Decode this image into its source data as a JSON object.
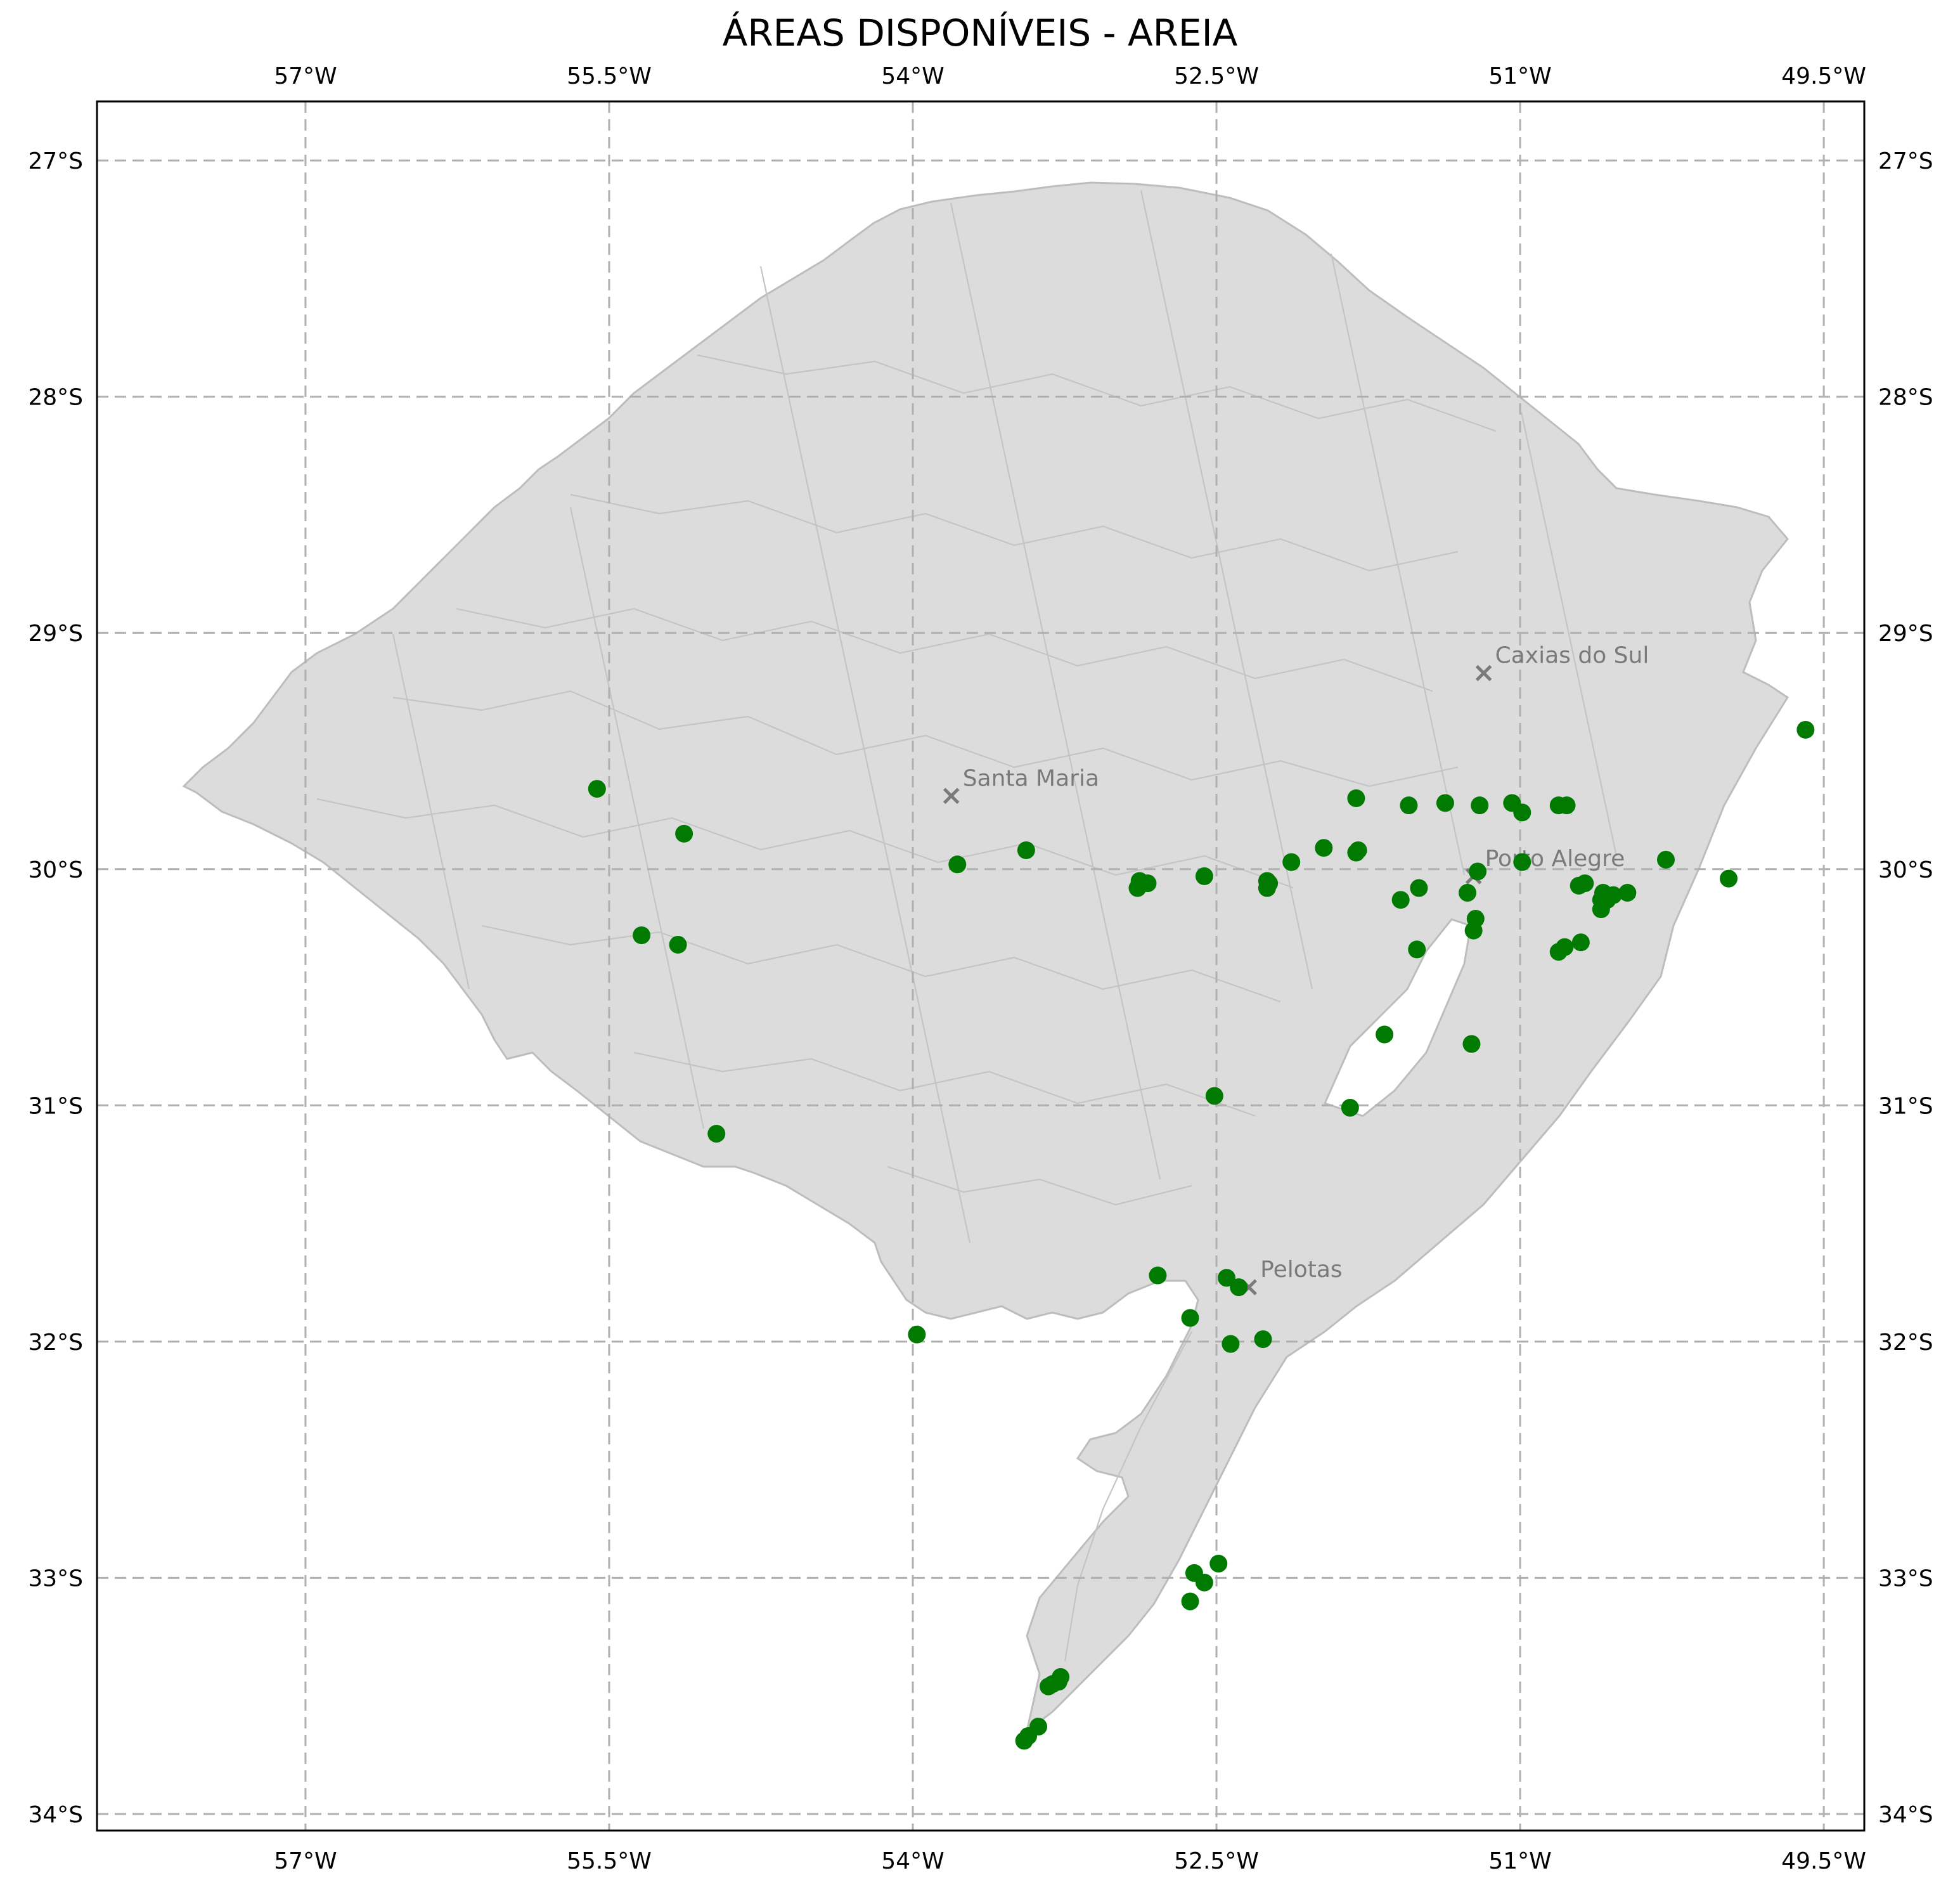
{
  "title": "ÁREAS DISPONÍVEIS - AREIA",
  "colors": {
    "land": "#dcdcdc",
    "border": "#bdbdbd",
    "point": "#007a00",
    "city_marker": "#7a7a7a"
  },
  "x_ticks": [
    {
      "lon": -57.0,
      "label": "57°W"
    },
    {
      "lon": -55.5,
      "label": "55.5°W"
    },
    {
      "lon": -54.0,
      "label": "54°W"
    },
    {
      "lon": -52.5,
      "label": "52.5°W"
    },
    {
      "lon": -51.0,
      "label": "51°W"
    },
    {
      "lon": -49.5,
      "label": "49.5°W"
    }
  ],
  "y_ticks": [
    {
      "lat": -27,
      "label": "27°S"
    },
    {
      "lat": -28,
      "label": "28°S"
    },
    {
      "lat": -29,
      "label": "29°S"
    },
    {
      "lat": -30,
      "label": "30°S"
    },
    {
      "lat": -31,
      "label": "31°S"
    },
    {
      "lat": -32,
      "label": "32°S"
    },
    {
      "lat": -33,
      "label": "33°S"
    },
    {
      "lat": -34,
      "label": "34°S"
    }
  ],
  "extent": {
    "lon": [
      -58.03,
      -49.3
    ],
    "lat": [
      -34.07,
      -26.75
    ]
  },
  "cities": [
    {
      "name": "Caxias do Sul",
      "lon": -51.18,
      "lat": -29.17
    },
    {
      "name": "Santa Maria",
      "lon": -53.81,
      "lat": -29.69
    },
    {
      "name": "Porto Alegre",
      "lon": -51.23,
      "lat": -30.03
    },
    {
      "name": "Pelotas",
      "lon": -52.34,
      "lat": -31.77
    }
  ],
  "chart_data": {
    "type": "scatter",
    "title": "ÁREAS DISPONÍVEIS - AREIA",
    "xlabel": "",
    "ylabel": "",
    "xlim": [
      -58.03,
      -49.3
    ],
    "ylim": [
      -34.07,
      -26.75
    ],
    "grid": true,
    "series": [
      {
        "points": [
          [
            -55.56,
            -29.66
          ],
          [
            -55.13,
            -29.85
          ],
          [
            -55.34,
            -30.28
          ],
          [
            -55.16,
            -30.32
          ],
          [
            -54.97,
            -31.12
          ],
          [
            -53.78,
            -29.98
          ],
          [
            -53.44,
            -29.92
          ],
          [
            -52.89,
            -30.08
          ],
          [
            -52.88,
            -30.05
          ],
          [
            -52.84,
            -30.06
          ],
          [
            -52.56,
            -30.03
          ],
          [
            -52.51,
            -30.96
          ],
          [
            -52.25,
            -30.05
          ],
          [
            -52.25,
            -30.08
          ],
          [
            -52.24,
            -30.06
          ],
          [
            -52.13,
            -29.97
          ],
          [
            -51.97,
            -29.91
          ],
          [
            -51.81,
            -29.93
          ],
          [
            -51.8,
            -29.92
          ],
          [
            -51.81,
            -29.7
          ],
          [
            -51.55,
            -29.73
          ],
          [
            -51.37,
            -29.72
          ],
          [
            -51.2,
            -29.73
          ],
          [
            -51.04,
            -29.72
          ],
          [
            -50.99,
            -29.76
          ],
          [
            -50.81,
            -29.73
          ],
          [
            -50.77,
            -29.73
          ],
          [
            -51.21,
            -30.01
          ],
          [
            -51.26,
            -30.1
          ],
          [
            -51.5,
            -30.08
          ],
          [
            -51.59,
            -30.13
          ],
          [
            -51.22,
            -30.21
          ],
          [
            -51.23,
            -30.26
          ],
          [
            -50.99,
            -29.97
          ],
          [
            -50.71,
            -30.07
          ],
          [
            -50.68,
            -30.06
          ],
          [
            -50.6,
            -30.13
          ],
          [
            -50.59,
            -30.1
          ],
          [
            -50.54,
            -30.11
          ],
          [
            -50.57,
            -30.13
          ],
          [
            -50.6,
            -30.17
          ],
          [
            -50.47,
            -30.1
          ],
          [
            -50.28,
            -29.96
          ],
          [
            -49.97,
            -30.04
          ],
          [
            -49.59,
            -29.41
          ],
          [
            -51.51,
            -30.34
          ],
          [
            -50.81,
            -30.35
          ],
          [
            -50.78,
            -30.33
          ],
          [
            -50.7,
            -30.31
          ],
          [
            -51.67,
            -30.7
          ],
          [
            -51.24,
            -30.74
          ],
          [
            -51.84,
            -31.01
          ],
          [
            -52.79,
            -31.72
          ],
          [
            -52.45,
            -31.73
          ],
          [
            -52.39,
            -31.77
          ],
          [
            -52.63,
            -31.9
          ],
          [
            -52.43,
            -32.01
          ],
          [
            -52.27,
            -31.99
          ],
          [
            -53.98,
            -31.97
          ],
          [
            -52.61,
            -32.98
          ],
          [
            -52.56,
            -33.02
          ],
          [
            -52.49,
            -32.94
          ],
          [
            -52.63,
            -33.1
          ],
          [
            -53.27,
            -33.42
          ],
          [
            -53.28,
            -33.44
          ],
          [
            -53.31,
            -33.45
          ],
          [
            -53.33,
            -33.46
          ],
          [
            -53.38,
            -33.63
          ],
          [
            -53.43,
            -33.67
          ],
          [
            -53.45,
            -33.69
          ]
        ]
      }
    ]
  }
}
